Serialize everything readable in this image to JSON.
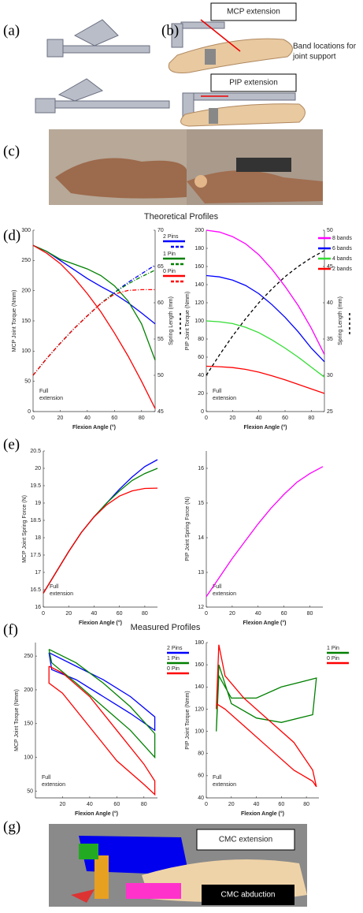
{
  "panel_labels": [
    "(a)",
    "(b)",
    "(c)",
    "(d)",
    "(e)",
    "(f)",
    "(g)"
  ],
  "labels": {
    "mcp_extension": "MCP extension",
    "pip_extension": "PIP extension",
    "band_locations": [
      "Band locations for",
      "joint support"
    ],
    "cmc_extension": "CMC extension",
    "cmc_abduction": "CMC abduction"
  },
  "section_titles": [
    "Theoretical Profiles",
    "Measured Profiles"
  ],
  "chart_data": [
    {
      "type": "line",
      "x": [
        0,
        10,
        20,
        30,
        40,
        50,
        60,
        70,
        80,
        90
      ],
      "xlim": [
        0,
        90
      ],
      "xticks": [
        0,
        20,
        40,
        60,
        80
      ],
      "ylim": [
        0,
        300
      ],
      "yticks": [
        0,
        50,
        100,
        150,
        200,
        250,
        300
      ],
      "y2lim": [
        45,
        70
      ],
      "y2ticks": [
        45,
        50,
        55,
        60,
        65,
        70
      ],
      "xlabel": "Flexion Angle (°)",
      "ylabel": "MCP Joint Torque (Nmm)",
      "y2label": "Spring Length (mm)",
      "annotation": [
        "Full",
        "extension"
      ],
      "series": [
        {
          "name": "2 Pins",
          "color": "#0000ff",
          "values": [
            275,
            265,
            250,
            235,
            220,
            207,
            195,
            180,
            163,
            145
          ]
        },
        {
          "name": "1 Pin",
          "color": "#008000",
          "values": [
            275,
            265,
            252,
            244,
            236,
            225,
            208,
            183,
            145,
            85
          ]
        },
        {
          "name": "0 Pin",
          "color": "#ff0000",
          "values": [
            275,
            262,
            245,
            222,
            195,
            165,
            130,
            92,
            50,
            5
          ]
        },
        {
          "color": "#0000ff",
          "dash": "dashdot",
          "axis": "y2",
          "values": [
            50,
            52.3,
            54.4,
            56.4,
            58.2,
            59.9,
            61.4,
            62.8,
            64,
            65.2
          ]
        },
        {
          "color": "#008000",
          "dash": "dashdot",
          "axis": "y2",
          "values": [
            50,
            52.3,
            54.4,
            56.4,
            58.2,
            59.9,
            61.4,
            62.6,
            63.6,
            64.5
          ]
        },
        {
          "color": "#ff0000",
          "dash": "dashdot",
          "axis": "y2",
          "values": [
            50,
            52.3,
            54.4,
            56.4,
            58.2,
            59.9,
            61.2,
            61.7,
            61.8,
            61.8
          ]
        }
      ]
    },
    {
      "type": "line",
      "x": [
        0,
        10,
        20,
        30,
        40,
        50,
        60,
        70,
        80,
        90
      ],
      "xlim": [
        0,
        90
      ],
      "xticks": [
        0,
        20,
        40,
        60,
        80
      ],
      "ylim": [
        0,
        200
      ],
      "yticks": [
        0,
        20,
        40,
        60,
        80,
        100,
        120,
        140,
        160,
        180,
        200
      ],
      "y2lim": [
        25,
        50
      ],
      "y2ticks": [
        25,
        30,
        35,
        40,
        45,
        50
      ],
      "xlabel": "Flexion Angle (°)",
      "ylabel": "PIP Joint Torque (Nmm)",
      "y2label": "Spring Length (mm)",
      "annotation": [
        "Full",
        "extension"
      ],
      "series": [
        {
          "name": "8 bands",
          "color": "#ff00ff",
          "values": [
            200,
            198,
            193,
            185,
            173,
            157,
            138,
            117,
            92,
            63
          ]
        },
        {
          "name": "6 bands",
          "color": "#0000ff",
          "values": [
            150,
            148.5,
            145,
            139,
            130,
            118,
            104,
            88,
            70,
            55
          ]
        },
        {
          "name": "4 bands",
          "color": "#33dd33",
          "values": [
            100,
            99,
            97,
            93,
            87,
            79,
            70,
            60,
            49,
            38
          ]
        },
        {
          "name": "2 bands",
          "color": "#ff0000",
          "values": [
            50,
            49.5,
            48.5,
            46.5,
            43.5,
            39.5,
            35,
            30,
            25,
            20
          ]
        },
        {
          "color": "#000000",
          "dash": "dashed",
          "axis": "y2",
          "values": [
            30,
            32.8,
            35.4,
            37.8,
            40,
            41.9,
            43.6,
            45,
            46.2,
            47.2
          ]
        }
      ]
    },
    {
      "type": "line",
      "x": [
        0,
        10,
        20,
        30,
        40,
        50,
        60,
        70,
        80,
        90
      ],
      "xlim": [
        0,
        90
      ],
      "xticks": [
        0,
        20,
        40,
        60,
        80
      ],
      "ylim": [
        16,
        20.5
      ],
      "yticks": [
        16,
        16.5,
        17,
        17.5,
        18,
        18.5,
        19,
        19.5,
        20,
        20.5
      ],
      "xlabel": "Flexion Angle (°)",
      "ylabel": "MCP Joint Spring Force (N)",
      "annotation": [
        "Full",
        "extension"
      ],
      "series": [
        {
          "color": "#0000ff",
          "values": [
            16.4,
            17,
            17.6,
            18.15,
            18.6,
            19,
            19.4,
            19.75,
            20.05,
            20.25
          ]
        },
        {
          "color": "#008000",
          "values": [
            16.4,
            17,
            17.6,
            18.15,
            18.6,
            19,
            19.35,
            19.65,
            19.85,
            20
          ]
        },
        {
          "color": "#ff0000",
          "values": [
            16.4,
            17,
            17.6,
            18.15,
            18.6,
            18.95,
            19.2,
            19.35,
            19.42,
            19.43
          ]
        }
      ]
    },
    {
      "type": "line",
      "x": [
        0,
        10,
        20,
        30,
        40,
        50,
        60,
        70,
        80,
        90
      ],
      "xlim": [
        0,
        90
      ],
      "xticks": [
        0,
        20,
        40,
        60,
        80
      ],
      "ylim": [
        12,
        16.5
      ],
      "yticks": [
        12,
        13,
        14,
        15,
        16
      ],
      "xlabel": "Flexion Angle (°)",
      "ylabel": "PIP Joint Spring Force (N)",
      "annotation": [
        "Full",
        "extension"
      ],
      "series": [
        {
          "color": "#ff00ff",
          "values": [
            12.3,
            12.85,
            13.4,
            13.9,
            14.4,
            14.85,
            15.25,
            15.6,
            15.85,
            16.05
          ]
        }
      ]
    },
    {
      "type": "line",
      "xlim": [
        0,
        90
      ],
      "xticks": [
        20,
        40,
        60,
        80
      ],
      "ylim": [
        40,
        270
      ],
      "yticks": [
        50,
        100,
        150,
        200,
        250
      ],
      "xlabel": "Flexion Angle (°)",
      "ylabel": "MCP Joint Torque (Nmm)",
      "annotation": [
        "Full",
        "extension"
      ],
      "series": [
        {
          "name": "2 Pins",
          "color": "#0000ff",
          "x": [
            10,
            30,
            50,
            70,
            88,
            88,
            70,
            50,
            30,
            12,
            10
          ],
          "values": [
            255,
            235,
            215,
            190,
            160,
            140,
            165,
            190,
            215,
            230,
            255
          ]
        },
        {
          "name": "1 Pin",
          "color": "#008000",
          "x": [
            10,
            30,
            50,
            70,
            88,
            88,
            70,
            50,
            30,
            12,
            10
          ],
          "values": [
            260,
            240,
            210,
            175,
            135,
            100,
            140,
            175,
            210,
            240,
            260
          ]
        },
        {
          "name": "0 Pin",
          "color": "#ff0000",
          "x": [
            10,
            20,
            40,
            60,
            80,
            88,
            88,
            80,
            60,
            40,
            20,
            10,
            10
          ],
          "values": [
            235,
            225,
            190,
            140,
            90,
            65,
            45,
            60,
            95,
            145,
            195,
            210,
            235
          ]
        }
      ]
    },
    {
      "type": "line",
      "xlim": [
        0,
        90
      ],
      "xticks": [
        0,
        20,
        40,
        60,
        80
      ],
      "ylim": [
        40,
        180
      ],
      "yticks": [
        40,
        60,
        80,
        100,
        120,
        140,
        160,
        180
      ],
      "xlabel": "Flexion Angle (°)",
      "ylabel": "PIP Joint Torque (Nmm)",
      "annotation": [
        "Full",
        "extension"
      ],
      "series": [
        {
          "name": "1 Pin",
          "color": "#008000",
          "x": [
            8,
            10,
            20,
            40,
            60,
            85,
            88,
            60,
            40,
            20,
            10,
            8
          ],
          "values": [
            100,
            160,
            125,
            112,
            108,
            115,
            148,
            140,
            130,
            130,
            150,
            100
          ]
        },
        {
          "name": "0 Pin",
          "color": "#ff0000",
          "x": [
            8,
            10,
            15,
            30,
            50,
            70,
            85,
            88,
            85,
            70,
            50,
            30,
            15,
            8
          ],
          "values": [
            120,
            178,
            150,
            130,
            110,
            90,
            65,
            50,
            55,
            65,
            85,
            105,
            120,
            125
          ]
        }
      ]
    }
  ]
}
